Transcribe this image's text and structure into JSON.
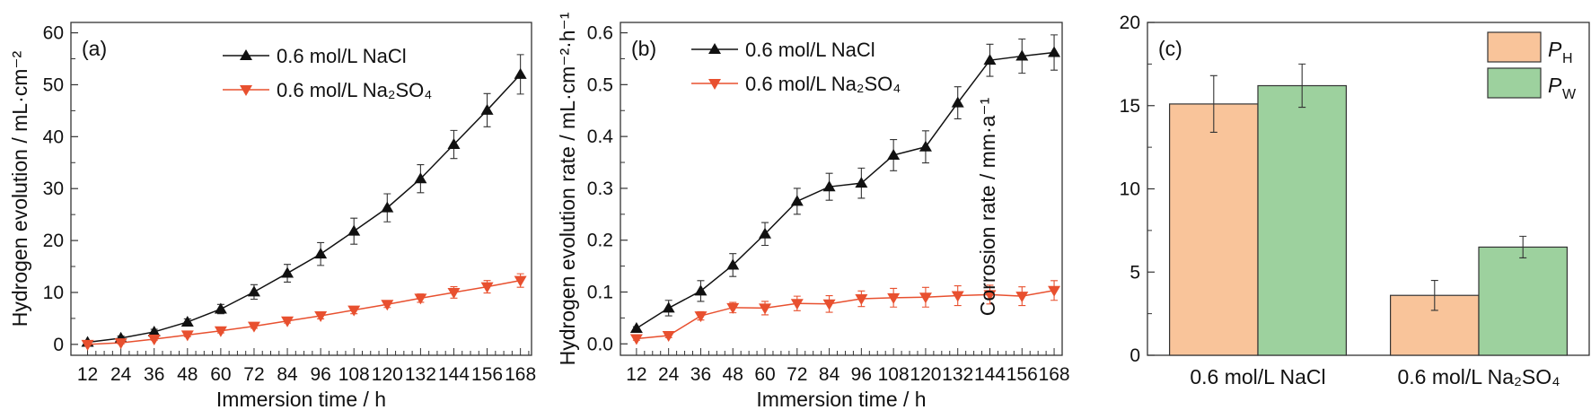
{
  "chart_data": [
    {
      "type": "line",
      "panel_label": "(a)",
      "xlabel": "Immersion time / h",
      "ylabel": "Hydrogen evolution / mL·cm⁻²",
      "x": [
        12,
        24,
        36,
        48,
        60,
        72,
        84,
        96,
        108,
        120,
        132,
        144,
        156,
        168
      ],
      "xlim": [
        6,
        172
      ],
      "ylim": [
        -2.1,
        62
      ],
      "yticks": [
        0,
        10,
        20,
        30,
        40,
        50,
        60
      ],
      "grid": false,
      "legend_position": "top-right",
      "series": [
        {
          "name": "0.6 mol/L NaCl",
          "color": "#111111",
          "marker": "triangle-up",
          "values": [
            0.4,
            1.2,
            2.4,
            4.3,
            6.8,
            10.1,
            13.7,
            17.4,
            21.8,
            26.3,
            31.9,
            38.5,
            45.1,
            52.0
          ],
          "errors": [
            0.3,
            0.4,
            0.5,
            0.6,
            0.9,
            1.4,
            1.7,
            2.2,
            2.5,
            2.7,
            2.7,
            2.7,
            3.2,
            3.8
          ]
        },
        {
          "name": "0.6 mol/L Na₂SO₄",
          "color": "#e8502f",
          "marker": "triangle-down",
          "values": [
            0.0,
            0.3,
            1.0,
            1.8,
            2.6,
            3.5,
            4.5,
            5.5,
            6.6,
            7.7,
            8.9,
            10.0,
            11.1,
            12.3
          ],
          "errors": [
            0.2,
            0.2,
            0.2,
            0.3,
            0.4,
            0.4,
            0.4,
            0.6,
            0.7,
            0.6,
            0.8,
            1.1,
            1.2,
            1.3
          ]
        }
      ]
    },
    {
      "type": "line",
      "panel_label": "(b)",
      "xlabel": "Immersion time / h",
      "ylabel": "Hydrogen evolution rate / mL·cm⁻²·h⁻¹",
      "x": [
        12,
        24,
        36,
        48,
        60,
        72,
        84,
        96,
        108,
        120,
        132,
        144,
        156,
        168
      ],
      "xlim": [
        6,
        171
      ],
      "ylim": [
        -0.022,
        0.62
      ],
      "yticks": [
        0.0,
        0.1,
        0.2,
        0.3,
        0.4,
        0.5,
        0.6
      ],
      "grid": false,
      "legend_position": "top-left",
      "series": [
        {
          "name": "0.6 mol/L NaCl",
          "color": "#111111",
          "marker": "triangle-up",
          "values": [
            0.03,
            0.069,
            0.102,
            0.152,
            0.212,
            0.275,
            0.303,
            0.31,
            0.364,
            0.38,
            0.465,
            0.547,
            0.555,
            0.562
          ],
          "errors": [
            0.003,
            0.015,
            0.02,
            0.022,
            0.022,
            0.025,
            0.026,
            0.029,
            0.03,
            0.031,
            0.031,
            0.031,
            0.033,
            0.034
          ]
        },
        {
          "name": "0.6 mol/L Na₂SO₄",
          "color": "#e8502f",
          "marker": "triangle-down",
          "values": [
            0.01,
            0.016,
            0.054,
            0.07,
            0.069,
            0.078,
            0.077,
            0.087,
            0.089,
            0.09,
            0.093,
            0.095,
            0.092,
            0.103
          ],
          "errors": [
            0.003,
            0.004,
            0.008,
            0.01,
            0.013,
            0.014,
            0.016,
            0.015,
            0.018,
            0.019,
            0.019,
            0.018,
            0.018,
            0.019
          ]
        }
      ]
    },
    {
      "type": "bar",
      "panel_label": "(c)",
      "xlabel": "",
      "ylabel": "Corrosion rate / mm·a⁻¹",
      "categories": [
        "0.6 mol/L NaCl",
        "0.6 mol/L Na₂SO₄"
      ],
      "ylim": [
        0,
        20
      ],
      "yticks": [
        0,
        5,
        10,
        15,
        20
      ],
      "grid": false,
      "legend_position": "top-right",
      "series": [
        {
          "name": "P",
          "subscript": "H",
          "color": "#f9c49a",
          "values": [
            15.1,
            3.6
          ],
          "errors": [
            1.7,
            0.9
          ]
        },
        {
          "name": "P",
          "subscript": "W",
          "color": "#9dd19e",
          "values": [
            16.2,
            6.5
          ],
          "errors": [
            1.3,
            0.65
          ]
        }
      ]
    }
  ]
}
